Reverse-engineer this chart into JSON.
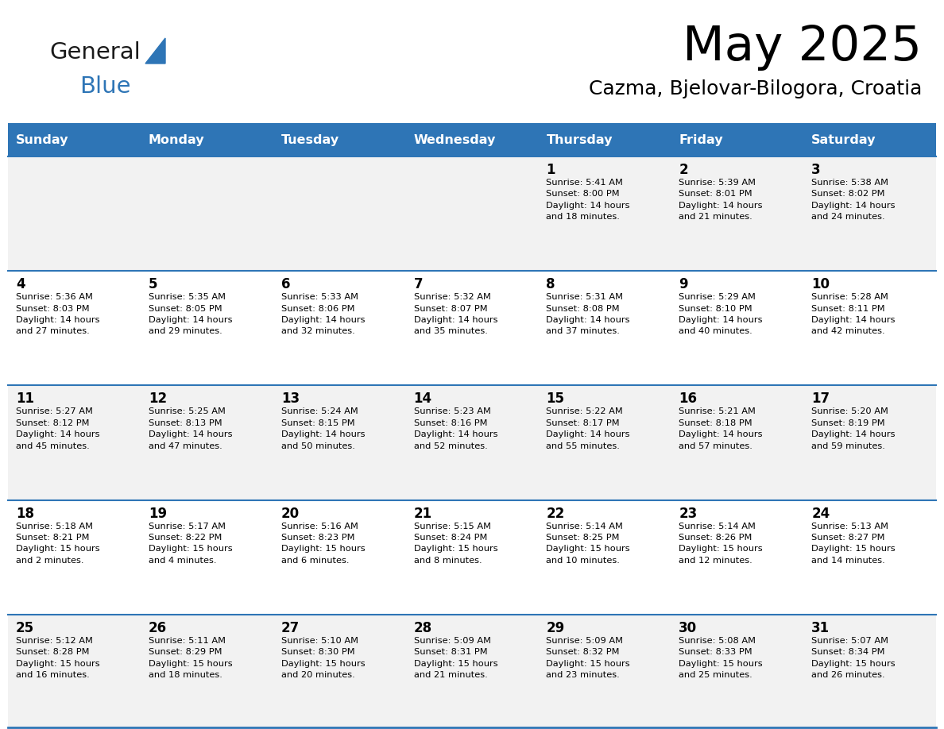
{
  "title": "May 2025",
  "subtitle": "Cazma, Bjelovar-Bilogora, Croatia",
  "header_color": "#2E75B6",
  "header_text_color": "#FFFFFF",
  "day_names": [
    "Sunday",
    "Monday",
    "Tuesday",
    "Wednesday",
    "Thursday",
    "Friday",
    "Saturday"
  ],
  "row_colors": [
    "#F2F2F2",
    "#FFFFFF"
  ],
  "divider_color": "#2E75B6",
  "text_color": "#000000",
  "logo_general_color": "#1a1a1a",
  "logo_blue_color": "#2E75B6",
  "calendar_data": [
    [
      {
        "day": "",
        "info": ""
      },
      {
        "day": "",
        "info": ""
      },
      {
        "day": "",
        "info": ""
      },
      {
        "day": "",
        "info": ""
      },
      {
        "day": "1",
        "info": "Sunrise: 5:41 AM\nSunset: 8:00 PM\nDaylight: 14 hours\nand 18 minutes."
      },
      {
        "day": "2",
        "info": "Sunrise: 5:39 AM\nSunset: 8:01 PM\nDaylight: 14 hours\nand 21 minutes."
      },
      {
        "day": "3",
        "info": "Sunrise: 5:38 AM\nSunset: 8:02 PM\nDaylight: 14 hours\nand 24 minutes."
      }
    ],
    [
      {
        "day": "4",
        "info": "Sunrise: 5:36 AM\nSunset: 8:03 PM\nDaylight: 14 hours\nand 27 minutes."
      },
      {
        "day": "5",
        "info": "Sunrise: 5:35 AM\nSunset: 8:05 PM\nDaylight: 14 hours\nand 29 minutes."
      },
      {
        "day": "6",
        "info": "Sunrise: 5:33 AM\nSunset: 8:06 PM\nDaylight: 14 hours\nand 32 minutes."
      },
      {
        "day": "7",
        "info": "Sunrise: 5:32 AM\nSunset: 8:07 PM\nDaylight: 14 hours\nand 35 minutes."
      },
      {
        "day": "8",
        "info": "Sunrise: 5:31 AM\nSunset: 8:08 PM\nDaylight: 14 hours\nand 37 minutes."
      },
      {
        "day": "9",
        "info": "Sunrise: 5:29 AM\nSunset: 8:10 PM\nDaylight: 14 hours\nand 40 minutes."
      },
      {
        "day": "10",
        "info": "Sunrise: 5:28 AM\nSunset: 8:11 PM\nDaylight: 14 hours\nand 42 minutes."
      }
    ],
    [
      {
        "day": "11",
        "info": "Sunrise: 5:27 AM\nSunset: 8:12 PM\nDaylight: 14 hours\nand 45 minutes."
      },
      {
        "day": "12",
        "info": "Sunrise: 5:25 AM\nSunset: 8:13 PM\nDaylight: 14 hours\nand 47 minutes."
      },
      {
        "day": "13",
        "info": "Sunrise: 5:24 AM\nSunset: 8:15 PM\nDaylight: 14 hours\nand 50 minutes."
      },
      {
        "day": "14",
        "info": "Sunrise: 5:23 AM\nSunset: 8:16 PM\nDaylight: 14 hours\nand 52 minutes."
      },
      {
        "day": "15",
        "info": "Sunrise: 5:22 AM\nSunset: 8:17 PM\nDaylight: 14 hours\nand 55 minutes."
      },
      {
        "day": "16",
        "info": "Sunrise: 5:21 AM\nSunset: 8:18 PM\nDaylight: 14 hours\nand 57 minutes."
      },
      {
        "day": "17",
        "info": "Sunrise: 5:20 AM\nSunset: 8:19 PM\nDaylight: 14 hours\nand 59 minutes."
      }
    ],
    [
      {
        "day": "18",
        "info": "Sunrise: 5:18 AM\nSunset: 8:21 PM\nDaylight: 15 hours\nand 2 minutes."
      },
      {
        "day": "19",
        "info": "Sunrise: 5:17 AM\nSunset: 8:22 PM\nDaylight: 15 hours\nand 4 minutes."
      },
      {
        "day": "20",
        "info": "Sunrise: 5:16 AM\nSunset: 8:23 PM\nDaylight: 15 hours\nand 6 minutes."
      },
      {
        "day": "21",
        "info": "Sunrise: 5:15 AM\nSunset: 8:24 PM\nDaylight: 15 hours\nand 8 minutes."
      },
      {
        "day": "22",
        "info": "Sunrise: 5:14 AM\nSunset: 8:25 PM\nDaylight: 15 hours\nand 10 minutes."
      },
      {
        "day": "23",
        "info": "Sunrise: 5:14 AM\nSunset: 8:26 PM\nDaylight: 15 hours\nand 12 minutes."
      },
      {
        "day": "24",
        "info": "Sunrise: 5:13 AM\nSunset: 8:27 PM\nDaylight: 15 hours\nand 14 minutes."
      }
    ],
    [
      {
        "day": "25",
        "info": "Sunrise: 5:12 AM\nSunset: 8:28 PM\nDaylight: 15 hours\nand 16 minutes."
      },
      {
        "day": "26",
        "info": "Sunrise: 5:11 AM\nSunset: 8:29 PM\nDaylight: 15 hours\nand 18 minutes."
      },
      {
        "day": "27",
        "info": "Sunrise: 5:10 AM\nSunset: 8:30 PM\nDaylight: 15 hours\nand 20 minutes."
      },
      {
        "day": "28",
        "info": "Sunrise: 5:09 AM\nSunset: 8:31 PM\nDaylight: 15 hours\nand 21 minutes."
      },
      {
        "day": "29",
        "info": "Sunrise: 5:09 AM\nSunset: 8:32 PM\nDaylight: 15 hours\nand 23 minutes."
      },
      {
        "day": "30",
        "info": "Sunrise: 5:08 AM\nSunset: 8:33 PM\nDaylight: 15 hours\nand 25 minutes."
      },
      {
        "day": "31",
        "info": "Sunrise: 5:07 AM\nSunset: 8:34 PM\nDaylight: 15 hours\nand 26 minutes."
      }
    ]
  ]
}
